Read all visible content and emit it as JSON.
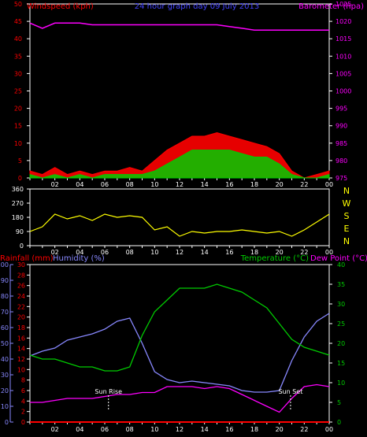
{
  "chart_data": [
    {
      "type": "line",
      "panel": "wind-pressure",
      "title": "24 hour graph day 09 July 2013",
      "ylabel_left": "Windspeed (kph)",
      "ylabel_right": "Barometer (hpa)",
      "ylim_left": [
        0,
        50
      ],
      "yticks_left": [
        "0",
        "5",
        "10",
        "15",
        "20",
        "25",
        "30",
        "35",
        "40",
        "45",
        "50"
      ],
      "ylim_right": [
        975,
        1025
      ],
      "yticks_right": [
        "975",
        "980",
        "985",
        "990",
        "995",
        "1000",
        "1005",
        "1010",
        "1015",
        "1020",
        "1025"
      ],
      "x_hours": [
        0,
        1,
        2,
        3,
        4,
        5,
        6,
        7,
        8,
        9,
        10,
        11,
        12,
        13,
        14,
        15,
        16,
        17,
        18,
        19,
        20,
        21,
        22,
        23,
        24
      ],
      "series": [
        {
          "name": "Gust",
          "color": "#ff0000",
          "values": [
            2,
            1,
            3,
            1,
            2,
            1,
            2,
            2,
            3,
            2,
            5,
            8,
            10,
            12,
            12,
            13,
            12,
            11,
            10,
            9,
            7,
            2,
            0,
            1,
            2
          ]
        },
        {
          "name": "Average",
          "color": "#00cc00",
          "values": [
            1,
            0,
            1,
            0,
            1,
            0,
            1,
            1,
            1,
            1,
            2,
            4,
            6,
            8,
            8,
            8,
            8,
            7,
            6,
            6,
            4,
            1,
            0,
            0,
            1
          ]
        },
        {
          "name": "Barometer",
          "color": "#ff00ff",
          "values": [
            1019.5,
            1018,
            1019.5,
            1019.5,
            1019.5,
            1019,
            1019,
            1019,
            1019,
            1019,
            1019,
            1019,
            1019,
            1019,
            1019,
            1019,
            1018.5,
            1018,
            1017.5,
            1017.5,
            1017.5,
            1017.5,
            1017.5,
            1017.5,
            1017.5
          ]
        }
      ]
    },
    {
      "type": "scatter",
      "panel": "wind-direction",
      "ylim": [
        0,
        360
      ],
      "yticks": [
        "0",
        "90",
        "180",
        "270",
        "360"
      ],
      "compass": [
        "N",
        "W",
        "S",
        "E",
        "N"
      ],
      "x_hours": [
        0,
        1,
        2,
        3,
        4,
        5,
        6,
        7,
        8,
        9,
        10,
        11,
        12,
        13,
        14,
        15,
        16,
        17,
        18,
        19,
        20,
        21,
        22,
        23,
        24
      ],
      "series": [
        {
          "name": "Direction",
          "color": "#ffff00",
          "values": [
            90,
            120,
            200,
            170,
            190,
            160,
            200,
            180,
            190,
            180,
            100,
            120,
            60,
            90,
            80,
            90,
            90,
            100,
            90,
            80,
            90,
            60,
            100,
            150,
            200
          ]
        }
      ]
    },
    {
      "type": "line",
      "panel": "temp-hum-rain",
      "ylabel_rain": "Rainfall (mm)",
      "ylabel_hum": "Humidity (%)",
      "ylabel_temp": "Temperature (°C)",
      "ylabel_dew": "Dew Point (°C)",
      "ylim_rain": [
        0,
        30
      ],
      "yticks_rain": [
        "0",
        "2",
        "4",
        "6",
        "8",
        "10",
        "12",
        "14",
        "16",
        "18",
        "20",
        "22",
        "24",
        "26",
        "28",
        "30"
      ],
      "ylim_hum": [
        0,
        100
      ],
      "yticks_hum": [
        "0",
        "10",
        "20",
        "30",
        "40",
        "50",
        "60",
        "70",
        "80",
        "90",
        "100"
      ],
      "ylim_temp": [
        0,
        40
      ],
      "yticks_temp": [
        "0",
        "5",
        "10",
        "15",
        "20",
        "25",
        "30",
        "35",
        "40"
      ],
      "x_ticklabels": [
        "02",
        "04",
        "06",
        "08",
        "10",
        "12",
        "14",
        "16",
        "18",
        "20",
        "22",
        "00"
      ],
      "x_hours": [
        0,
        1,
        2,
        3,
        4,
        5,
        6,
        7,
        8,
        9,
        10,
        11,
        12,
        13,
        14,
        15,
        16,
        17,
        18,
        19,
        20,
        21,
        22,
        23,
        24
      ],
      "annotations": [
        "Sun Rise",
        "Sun Set"
      ],
      "sun_rise_hour": 6.3,
      "sun_set_hour": 20.9,
      "series": [
        {
          "name": "Humidity",
          "color": "#8888ff",
          "values": [
            42,
            45,
            47,
            52,
            54,
            56,
            59,
            64,
            66,
            50,
            32,
            27,
            25,
            26,
            25,
            24,
            23,
            20,
            19,
            19,
            20,
            39,
            54,
            64,
            69
          ]
        },
        {
          "name": "Temperature",
          "color": "#00cc00",
          "values": [
            17,
            16,
            16,
            15,
            14,
            14,
            13,
            13,
            14,
            22,
            28,
            31,
            34,
            34,
            34,
            35,
            34,
            33,
            31,
            29,
            25,
            21,
            19,
            18,
            17
          ]
        },
        {
          "name": "Dew Point",
          "color": "#ff00ff",
          "values": [
            5,
            5,
            5.5,
            6,
            6,
            6,
            6.5,
            7,
            7,
            7.5,
            7.5,
            9,
            9,
            9,
            8.5,
            9,
            8.5,
            7,
            5.5,
            4,
            2.5,
            6,
            9,
            9.5,
            9
          ]
        },
        {
          "name": "Rainfall",
          "color": "#ff0000",
          "values": [
            0,
            0,
            0,
            0,
            0,
            0,
            0,
            0,
            0,
            0,
            0,
            0,
            0,
            0,
            0,
            0,
            0,
            0,
            0,
            0,
            0,
            0,
            0,
            0,
            0
          ]
        }
      ]
    }
  ]
}
